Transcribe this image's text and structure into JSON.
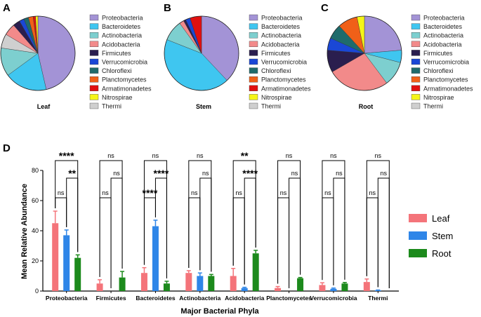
{
  "colors": {
    "Proteobacteria": "#a393d6",
    "Bacteroidetes": "#3fc6f0",
    "Actinobacteria": "#7dcfcf",
    "Acidobacteria": "#f28a8a",
    "Firmicutes": "#2a1e4e",
    "Verrucomicrobia": "#1a47d6",
    "Chloroflexi": "#1f6b6b",
    "Planctomycetes": "#f06018",
    "Armatimonadetes": "#e01010",
    "Nitrospirae": "#f5f518",
    "Thermi": "#cfcfcf",
    "Leaf": "#f4747a",
    "Stem": "#2f86e8",
    "Root": "#1c8a1c"
  },
  "chart_data": [
    {
      "type": "pie",
      "panel": "A",
      "title": "Leaf",
      "legend": [
        "Proteobacteria",
        "Bacteroidetes",
        "Actinobacteria",
        "Acidobacteria",
        "Firmicutes",
        "Verrucomicrobia",
        "Chloroflexi",
        "Planctomycetes",
        "Armatimonadetes",
        "Nitrospirae",
        "Thermi"
      ],
      "slices": [
        {
          "name": "Proteobacteria",
          "value": 45
        },
        {
          "name": "Bacteroidetes",
          "value": 18
        },
        {
          "name": "Actinobacteria",
          "value": 12
        },
        {
          "name": "Thermi",
          "value": 6
        },
        {
          "name": "Acidobacteria",
          "value": 5
        },
        {
          "name": "Firmicutes",
          "value": 3
        },
        {
          "name": "Verrucomicrobia",
          "value": 2
        },
        {
          "name": "Chloroflexi",
          "value": 2
        },
        {
          "name": "Planctomycetes",
          "value": 2
        },
        {
          "name": "Armatimonadetes",
          "value": 1
        },
        {
          "name": "Nitrospirae",
          "value": 1
        }
      ]
    },
    {
      "type": "pie",
      "panel": "B",
      "title": "Stem",
      "legend": [
        "Proteobacteria",
        "Bacteroidetes",
        "Actinobacteria",
        "Acidobacteria",
        "Firmicutes",
        "Verrucomicrobia",
        "Chloroflexi",
        "Planctomycetes",
        "Armatimonadetes",
        "Nitrospirae",
        "Thermi"
      ],
      "slices": [
        {
          "name": "Proteobacteria",
          "value": 38
        },
        {
          "name": "Bacteroidetes",
          "value": 43
        },
        {
          "name": "Actinobacteria",
          "value": 9
        },
        {
          "name": "Acidobacteria",
          "value": 2
        },
        {
          "name": "Firmicutes",
          "value": 1
        },
        {
          "name": "Verrucomicrobia",
          "value": 2
        },
        {
          "name": "Armatimonadetes",
          "value": 5
        }
      ]
    },
    {
      "type": "pie",
      "panel": "C",
      "title": "Root",
      "legend": [
        "Proteobacteria",
        "Bacteroidetes",
        "Actinobacteria",
        "Acidobacteria",
        "Firmicutes",
        "Verrucomicrobia",
        "Chloroflexi",
        "Planctomycetes",
        "Armatimonadetes",
        "Nitrospirae",
        "Thermi"
      ],
      "slices": [
        {
          "name": "Proteobacteria",
          "value": 22
        },
        {
          "name": "Bacteroidetes",
          "value": 5
        },
        {
          "name": "Actinobacteria",
          "value": 10
        },
        {
          "name": "Acidobacteria",
          "value": 25
        },
        {
          "name": "Firmicutes",
          "value": 9
        },
        {
          "name": "Verrucomicrobia",
          "value": 5
        },
        {
          "name": "Chloroflexi",
          "value": 6
        },
        {
          "name": "Planctomycetes",
          "value": 8
        },
        {
          "name": "Nitrospirae",
          "value": 3
        }
      ]
    },
    {
      "type": "bar",
      "panel": "D",
      "xlabel": "Major Bacterial Phyla",
      "ylabel": "Mean Relative Abundance",
      "ylim": [
        0,
        80
      ],
      "yticks": [
        "0",
        "20",
        "40",
        "60",
        "80"
      ],
      "categories": [
        "Proteobacteria",
        "Firmicutes",
        "Bacteroidetes",
        "Actinobacteria",
        "Acidobacteria",
        "Planctomycetes",
        "Verrucomicrobia",
        "Thermi"
      ],
      "series": [
        {
          "name": "Leaf",
          "values": [
            45,
            5,
            12,
            12,
            10,
            2,
            4,
            6
          ],
          "errors": [
            8,
            2.5,
            3.5,
            1.5,
            5,
            1,
            1.5,
            2
          ]
        },
        {
          "name": "Stem",
          "values": [
            37,
            0,
            43,
            10,
            2,
            0,
            1.5,
            0.5
          ],
          "errors": [
            3.5,
            0,
            4,
            2,
            0.5,
            0,
            0.5,
            0.2
          ]
        },
        {
          "name": "Root",
          "values": [
            22,
            9,
            5,
            10,
            25,
            8.5,
            5,
            0
          ],
          "errors": [
            2,
            4,
            1.5,
            1,
            2,
            0.5,
            0.7,
            0
          ]
        }
      ],
      "significance": [
        {
          "leaf_root": "****",
          "stem_root": "**",
          "leaf_stem": "ns"
        },
        {
          "leaf_root": "ns",
          "stem_root": "ns",
          "leaf_stem": "ns"
        },
        {
          "leaf_root": "ns",
          "stem_root": "****",
          "leaf_stem": "****"
        },
        {
          "leaf_root": "ns",
          "stem_root": "ns",
          "leaf_stem": "ns"
        },
        {
          "leaf_root": "**",
          "stem_root": "****",
          "leaf_stem": "ns"
        },
        {
          "leaf_root": "ns",
          "stem_root": "ns",
          "leaf_stem": "ns"
        },
        {
          "leaf_root": "ns",
          "stem_root": "ns",
          "leaf_stem": "ns"
        },
        {
          "leaf_root": "ns",
          "stem_root": "ns",
          "leaf_stem": "ns"
        }
      ]
    }
  ]
}
